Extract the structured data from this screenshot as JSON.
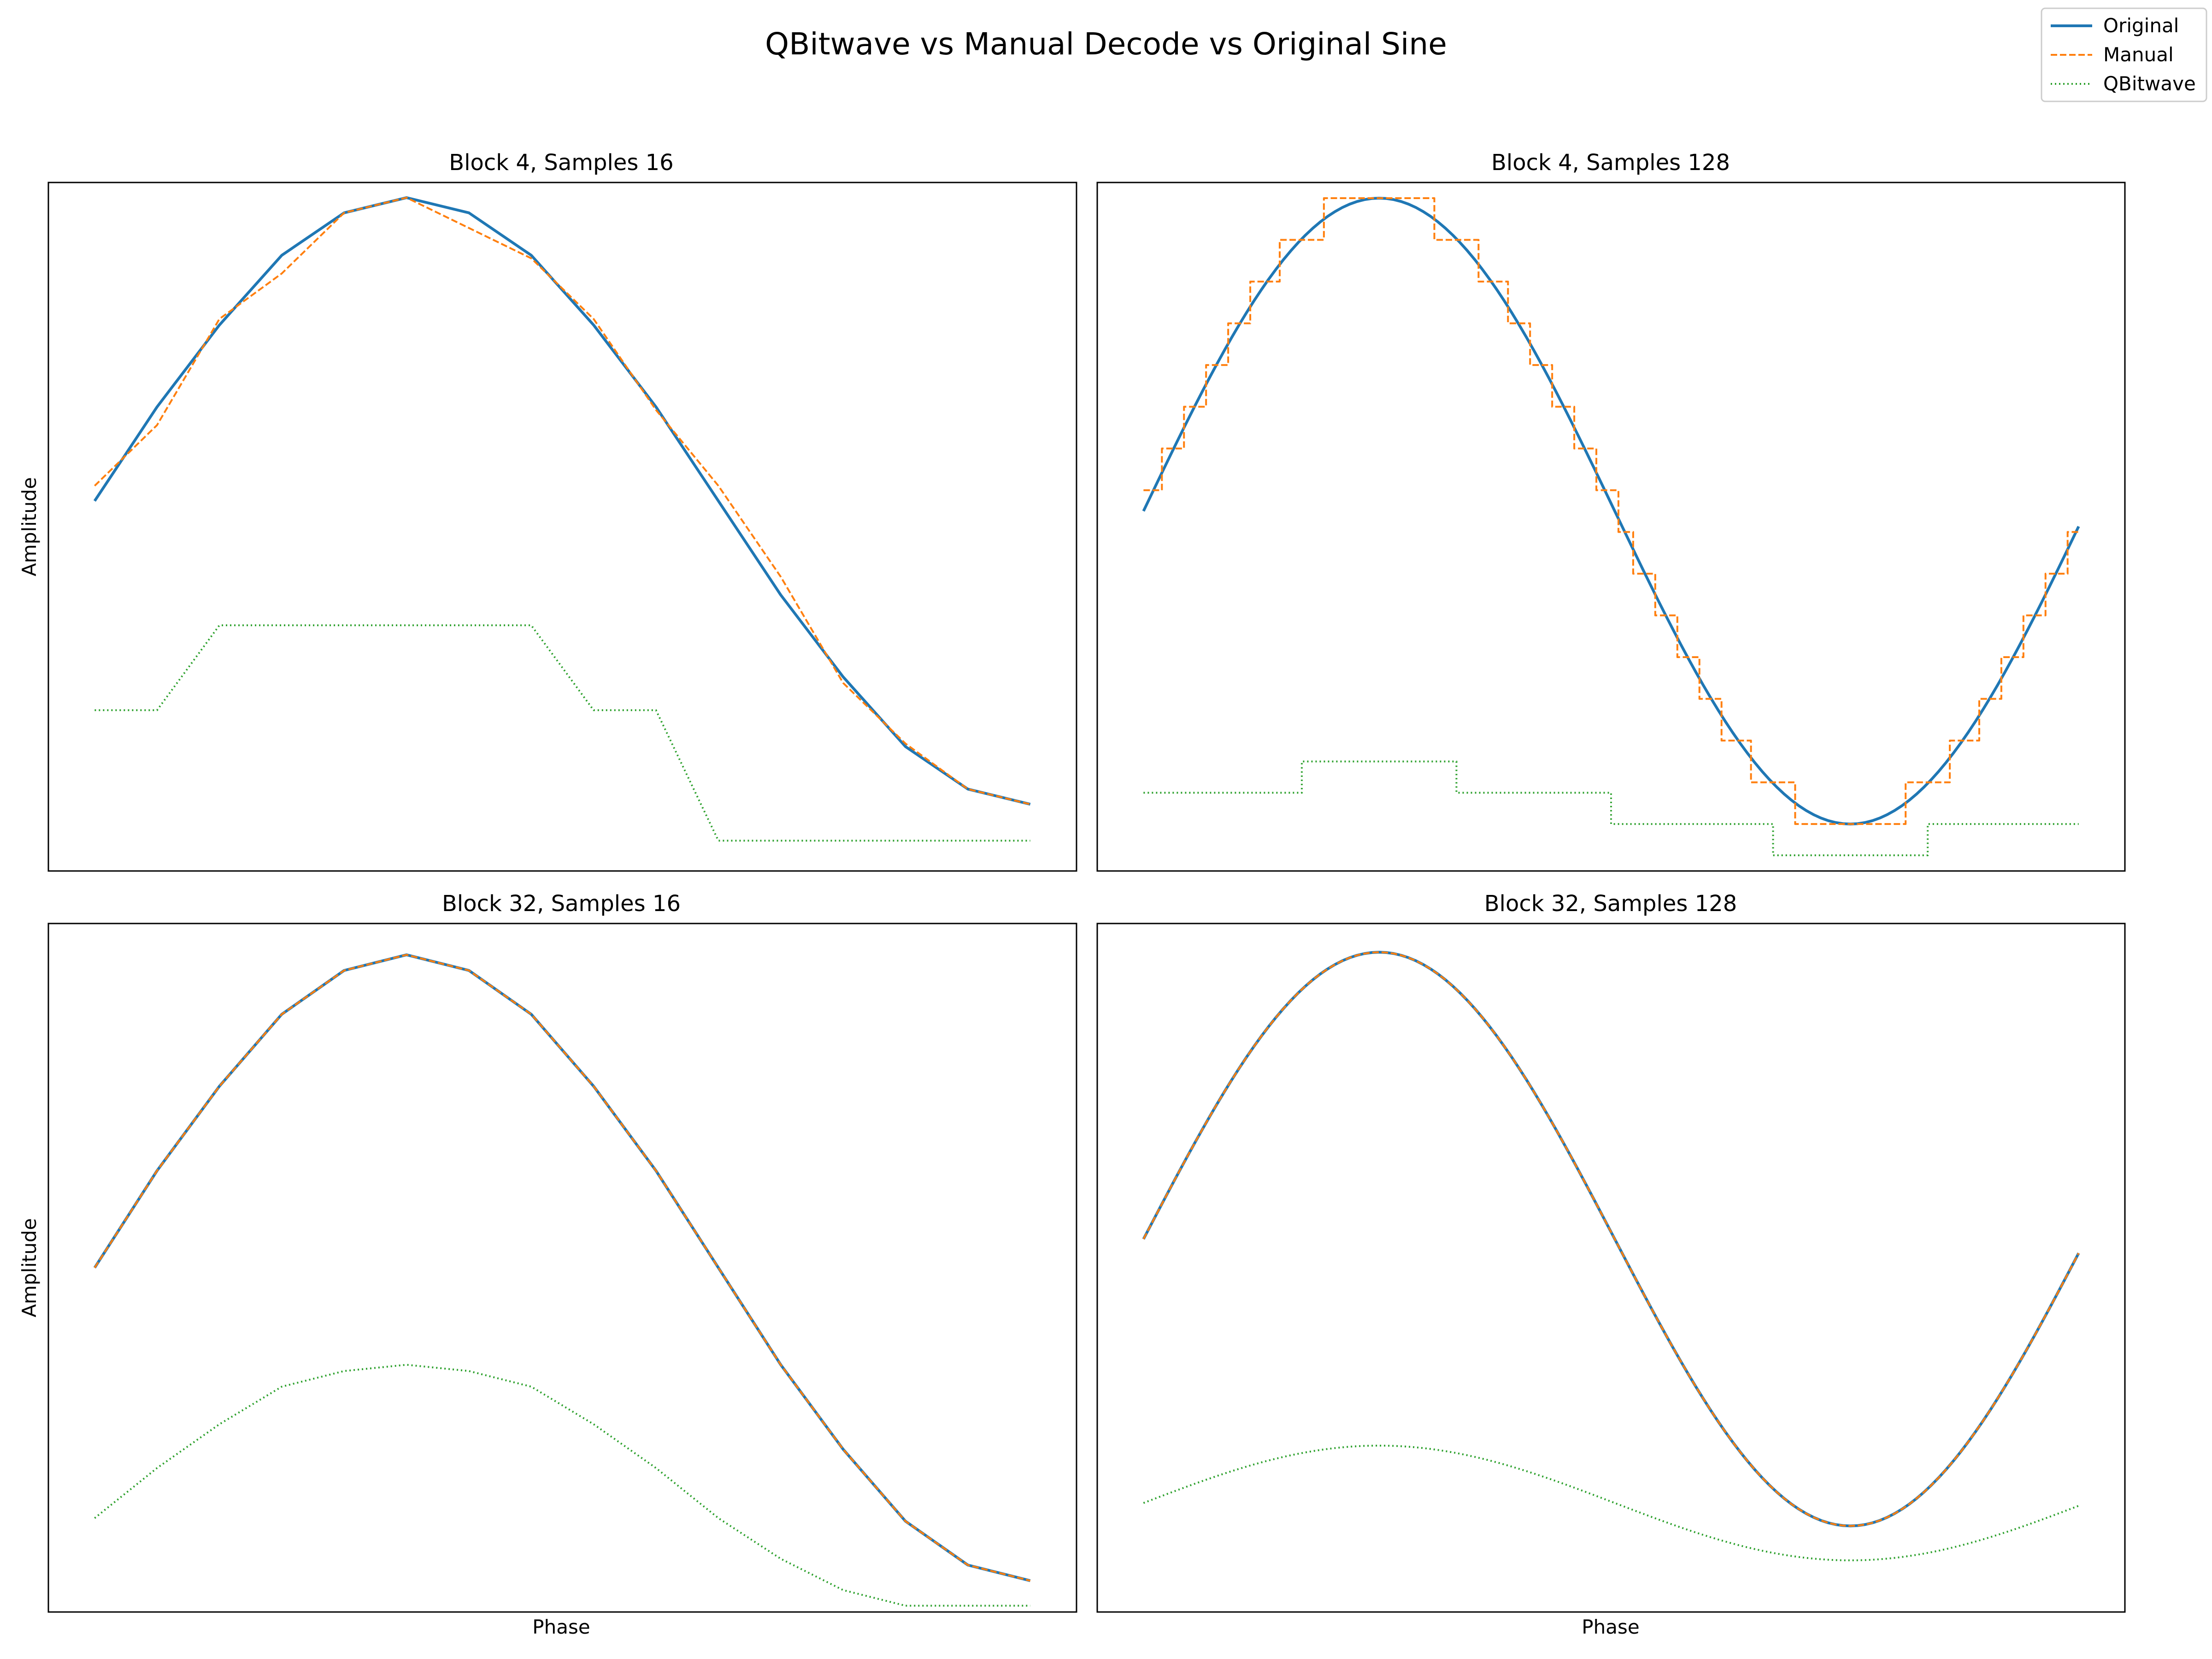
{
  "figure": {
    "title": "QBitwave vs Manual Decode vs Original Sine"
  },
  "legend": {
    "placement": "top-right",
    "entries": [
      {
        "name": "Original",
        "color": "#1f77b4",
        "style": "solid"
      },
      {
        "name": "Manual",
        "color": "#ff7f0e",
        "style": "dashed"
      },
      {
        "name": "QBitwave",
        "color": "#2ca02c",
        "style": "dotted"
      }
    ]
  },
  "chart_data": [
    {
      "type": "line",
      "title": "Block 4, Samples 16",
      "xlabel": "",
      "ylabel": "Amplitude",
      "grid": false,
      "xlim": [
        0,
        15
      ],
      "ylim": [
        -1.22,
        1.05
      ],
      "x": [
        0,
        1,
        2,
        3,
        4,
        5,
        6,
        7,
        8,
        9,
        10,
        11,
        12,
        13,
        14,
        15
      ],
      "series": [
        {
          "name": "Original",
          "values": [
            0.0,
            0.31,
            0.58,
            0.81,
            0.95,
            1.0,
            0.95,
            0.81,
            0.58,
            0.31,
            0.0,
            -0.31,
            -0.58,
            -0.81,
            -0.95,
            -1.0
          ]
        },
        {
          "name": "Manual",
          "values": [
            0.05,
            0.25,
            0.6,
            0.75,
            0.95,
            1.0,
            0.9,
            0.8,
            0.6,
            0.3,
            0.05,
            -0.25,
            -0.6,
            -0.8,
            -0.95,
            -1.0
          ]
        },
        {
          "name": "QBitwave",
          "values": [
            -0.69,
            -0.69,
            -0.41,
            -0.41,
            -0.41,
            -0.41,
            -0.41,
            -0.41,
            -0.69,
            -0.69,
            -1.12,
            -1.12,
            -1.12,
            -1.12,
            -1.12,
            -1.12
          ]
        }
      ]
    },
    {
      "type": "line",
      "title": "Block 4, Samples 128",
      "xlabel": "",
      "ylabel": "",
      "grid": false,
      "xlim": [
        0,
        127
      ],
      "ylim": [
        -1.15,
        1.05
      ],
      "x_range": [
        0,
        127
      ],
      "series": [
        {
          "name": "Original",
          "values": "sine"
        },
        {
          "name": "Manual",
          "values": "sine quantized to 16 levels (step)"
        },
        {
          "name": "QBitwave",
          "values": [
            -0.9,
            -0.8,
            -0.9,
            -1.0,
            -1.1,
            -1.0
          ]
        }
      ]
    },
    {
      "type": "line",
      "title": "Block 32, Samples 16",
      "xlabel": "Phase",
      "ylabel": "Amplitude",
      "grid": false,
      "xlim": [
        0,
        15
      ],
      "ylim": [
        -1.1,
        1.1
      ],
      "x": [
        0,
        1,
        2,
        3,
        4,
        5,
        6,
        7,
        8,
        9,
        10,
        11,
        12,
        13,
        14,
        15
      ],
      "series": [
        {
          "name": "Original",
          "values": [
            0.0,
            0.31,
            0.58,
            0.81,
            0.95,
            1.0,
            0.95,
            0.81,
            0.58,
            0.31,
            0.0,
            -0.31,
            -0.58,
            -0.81,
            -0.95,
            -1.0
          ]
        },
        {
          "name": "Manual",
          "values": [
            0.0,
            0.31,
            0.58,
            0.81,
            0.95,
            1.0,
            0.95,
            0.81,
            0.58,
            0.31,
            0.0,
            -0.31,
            -0.58,
            -0.81,
            -0.95,
            -1.0
          ]
        },
        {
          "name": "QBitwave",
          "values": [
            -0.8,
            -0.64,
            -0.5,
            -0.38,
            -0.33,
            -0.31,
            -0.33,
            -0.38,
            -0.5,
            -0.64,
            -0.8,
            -0.93,
            -1.03,
            -1.08,
            -1.08,
            -1.08
          ]
        }
      ]
    },
    {
      "type": "line",
      "title": "Block 32, Samples 128",
      "xlabel": "Phase",
      "ylabel": "",
      "grid": false,
      "xlim": [
        0,
        127
      ],
      "ylim": [
        -1.3,
        1.1
      ],
      "x_range": [
        0,
        127
      ],
      "series": [
        {
          "name": "Original",
          "values": "sine"
        },
        {
          "name": "Manual",
          "values": "sine"
        },
        {
          "name": "QBitwave",
          "values": "0.2 * sine - 0.92"
        }
      ]
    }
  ]
}
